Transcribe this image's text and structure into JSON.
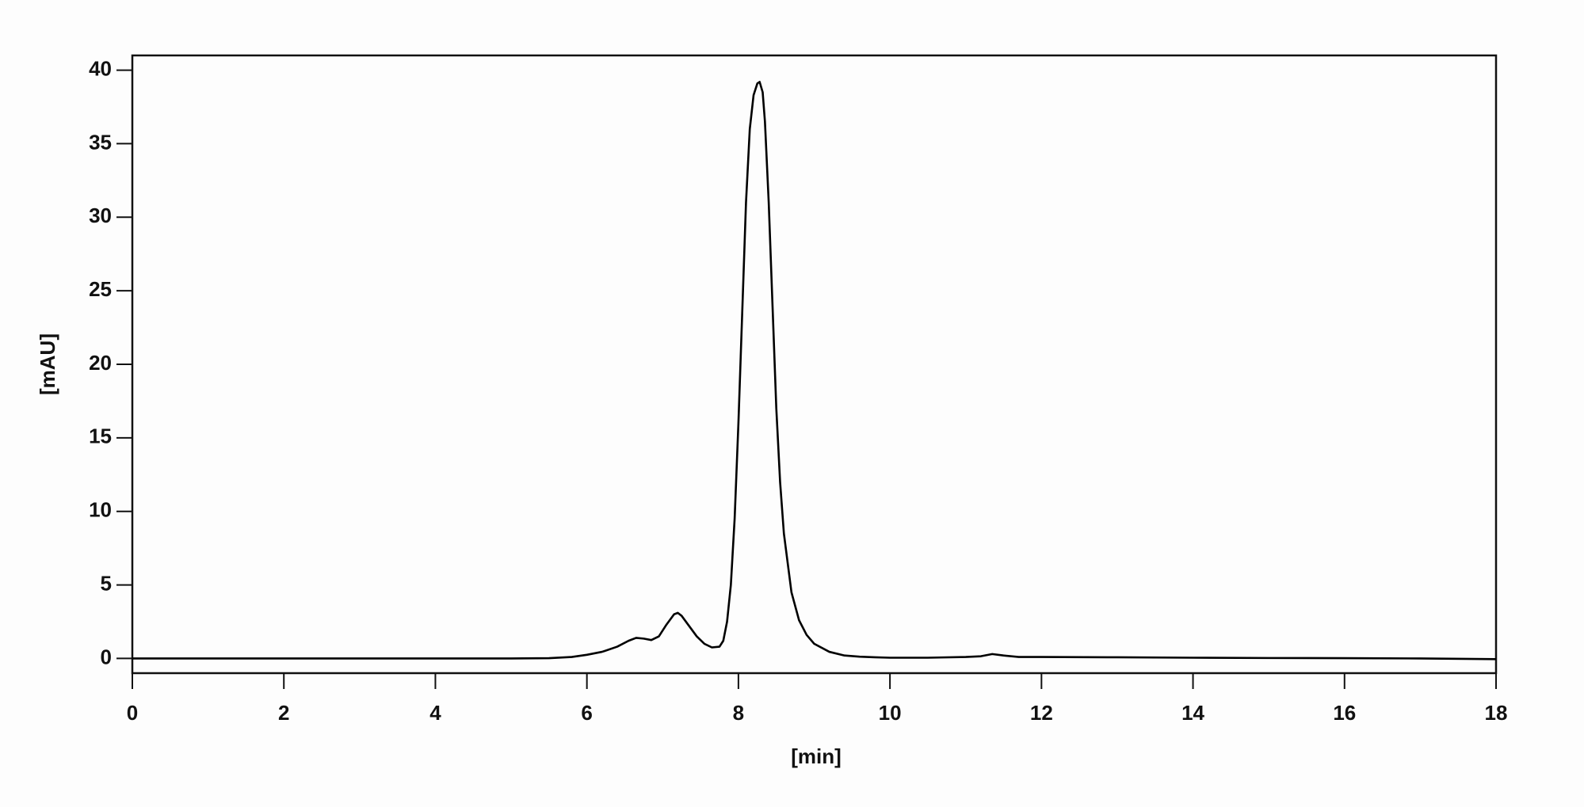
{
  "chart_data": {
    "type": "line",
    "xlabel": "[min]",
    "ylabel": "[mAU]",
    "x": [
      0,
      1,
      2,
      3,
      4,
      5,
      5.5,
      5.8,
      6,
      6.2,
      6.4,
      6.55,
      6.65,
      6.75,
      6.85,
      6.95,
      7.05,
      7.15,
      7.2,
      7.25,
      7.35,
      7.45,
      7.55,
      7.65,
      7.75,
      7.8,
      7.85,
      7.9,
      7.95,
      8,
      8.05,
      8.1,
      8.15,
      8.2,
      8.25,
      8.28,
      8.32,
      8.35,
      8.4,
      8.45,
      8.5,
      8.55,
      8.6,
      8.7,
      8.8,
      8.9,
      9,
      9.2,
      9.4,
      9.6,
      9.8,
      10,
      10.5,
      11,
      11.2,
      11.35,
      11.5,
      11.7,
      12,
      13,
      14,
      15,
      16,
      17,
      18
    ],
    "values": [
      0,
      0,
      0,
      0,
      0,
      0,
      0.02,
      0.1,
      0.25,
      0.45,
      0.8,
      1.2,
      1.4,
      1.35,
      1.25,
      1.5,
      2.3,
      3,
      3.1,
      2.9,
      2.2,
      1.5,
      1,
      0.75,
      0.8,
      1.2,
      2.5,
      5,
      9.5,
      16,
      23.5,
      31,
      36,
      38.3,
      39.1,
      39.2,
      38.5,
      36.5,
      31,
      24,
      17,
      12,
      8.5,
      4.5,
      2.6,
      1.6,
      1,
      0.45,
      0.2,
      0.12,
      0.08,
      0.05,
      0.05,
      0.1,
      0.15,
      0.3,
      0.2,
      0.1,
      0.1,
      0.08,
      0.05,
      0.03,
      0.02,
      0,
      -0.05
    ],
    "color": "#000000",
    "xlim": [
      0,
      18
    ],
    "xticks": [
      0,
      2,
      4,
      6,
      8,
      10,
      12,
      14,
      16,
      18
    ],
    "ylim": [
      -1,
      41
    ],
    "yticks": [
      0,
      5,
      10,
      15,
      20,
      25,
      30,
      35,
      40
    ],
    "grid": false
  }
}
